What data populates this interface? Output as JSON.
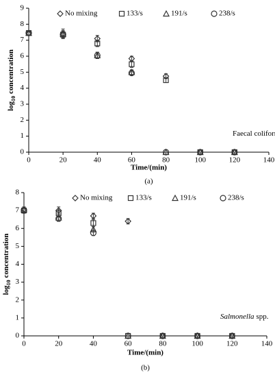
{
  "chart_data": [
    {
      "type": "scatter",
      "ylabel_parts": [
        "log",
        "10",
        "concentration"
      ],
      "xlabel": "Time/(min)",
      "annotation_parts": [
        "Faecal coliform"
      ],
      "caption": "(a)",
      "x": [
        0,
        20,
        40,
        60,
        80,
        100,
        120
      ],
      "xlim": [
        0,
        140
      ],
      "xticks": [
        0,
        20,
        40,
        60,
        80,
        100,
        120,
        140
      ],
      "ylim": [
        0,
        9
      ],
      "yticks": [
        0,
        1,
        2,
        3,
        4,
        5,
        6,
        7,
        8,
        9
      ],
      "series": [
        {
          "name": "No mixing",
          "marker": "diamond",
          "color": "#333333",
          "values": [
            7.45,
            7.4,
            7.1,
            5.85,
            4.75,
            0,
            0
          ],
          "errors": [
            0.15,
            0.3,
            0.2,
            0.15,
            0.15,
            0,
            0
          ]
        },
        {
          "name": "133/s",
          "marker": "square",
          "color": "#333333",
          "values": [
            7.45,
            7.35,
            6.8,
            5.5,
            4.5,
            0,
            0
          ],
          "errors": [
            0.15,
            0.2,
            0.2,
            0.2,
            0.15,
            0,
            0
          ]
        },
        {
          "name": "191/s",
          "marker": "triangle",
          "color": "#333333",
          "values": [
            7.45,
            7.4,
            6.05,
            5.0,
            0,
            0,
            0
          ],
          "errors": [
            0.15,
            0.2,
            0.2,
            0.15,
            0,
            0,
            0
          ]
        },
        {
          "name": "238/s",
          "marker": "circle",
          "color": "#333333",
          "values": [
            7.45,
            7.35,
            6.05,
            4.95,
            0,
            0,
            0
          ],
          "errors": [
            0.15,
            0.2,
            0.2,
            0.15,
            0,
            0,
            0
          ]
        }
      ]
    },
    {
      "type": "scatter",
      "ylabel_parts": [
        "log",
        "10",
        "concentration"
      ],
      "xlabel": "Time/(min)",
      "annotation_parts": [
        "Salmonella",
        "spp."
      ],
      "caption": "(b)",
      "x": [
        0,
        20,
        40,
        60,
        80,
        100,
        120
      ],
      "xlim": [
        0,
        140
      ],
      "xticks": [
        0,
        20,
        40,
        60,
        80,
        100,
        120,
        140
      ],
      "ylim": [
        0,
        8
      ],
      "yticks": [
        0,
        1,
        2,
        3,
        4,
        5,
        6,
        7,
        8
      ],
      "series": [
        {
          "name": "No mixing",
          "marker": "diamond",
          "color": "#333333",
          "values": [
            7.05,
            7.0,
            6.7,
            6.4,
            0,
            0,
            0
          ],
          "errors": [
            0.15,
            0.2,
            0.15,
            0.15,
            0,
            0,
            0
          ]
        },
        {
          "name": "133/s",
          "marker": "square",
          "color": "#333333",
          "values": [
            7.0,
            6.85,
            6.3,
            0,
            0,
            0,
            0
          ],
          "errors": [
            0.15,
            0.2,
            0.2,
            0,
            0,
            0,
            0
          ]
        },
        {
          "name": "191/s",
          "marker": "triangle",
          "color": "#333333",
          "values": [
            7.05,
            6.6,
            5.95,
            0,
            0,
            0,
            0
          ],
          "errors": [
            0.15,
            0.2,
            0.15,
            0,
            0,
            0,
            0
          ]
        },
        {
          "name": "238/s",
          "marker": "circle",
          "color": "#333333",
          "values": [
            7.0,
            6.55,
            5.75,
            0,
            0,
            0,
            0
          ],
          "errors": [
            0.15,
            0.15,
            0.15,
            0,
            0,
            0,
            0
          ]
        }
      ]
    }
  ]
}
